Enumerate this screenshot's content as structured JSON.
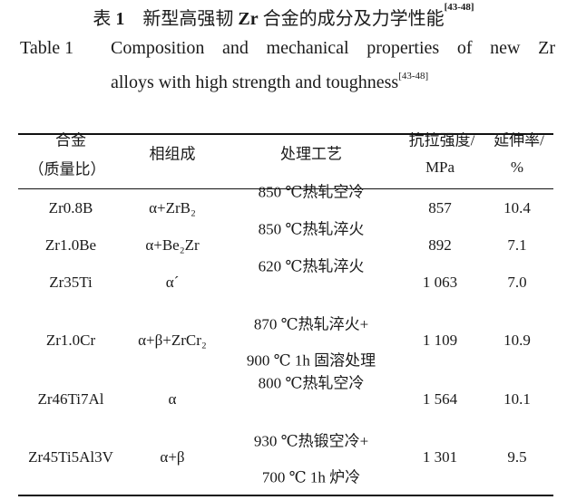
{
  "caption": {
    "zh_prefix": "表",
    "zh_number": "1",
    "zh_title_a": "新型高强韧",
    "zh_title_bold": "Zr",
    "zh_title_b": "合金的成分及力学性能",
    "zh_ref": "[43-48]",
    "en_label": "Table 1",
    "en_line1": "Composition and mechanical properties of new Zr",
    "en_line2": "alloys with high strength and toughness",
    "en_ref": "[43-48]"
  },
  "table": {
    "headers": {
      "alloy_1": "合金",
      "alloy_2": "（质量比）",
      "phase": "相组成",
      "process": "处理工艺",
      "strength_1": "抗拉强度/",
      "strength_2": "MPa",
      "elong_1": "延伸率/",
      "elong_2": "%"
    },
    "rows": [
      {
        "alloy": "Zr0.8B",
        "phase": "α+ZrB₂",
        "process": [
          "850 ℃热轧空冷"
        ],
        "strength": "857",
        "elongation": "10.4"
      },
      {
        "alloy": "Zr1.0Be",
        "phase": "α+Be₂Zr",
        "process": [
          "850 ℃热轧淬火"
        ],
        "strength": "892",
        "elongation": "7.1"
      },
      {
        "alloy": "Zr35Ti",
        "phase": "α´",
        "process": [
          "620 ℃热轧淬火"
        ],
        "strength": "1 063",
        "elongation": "7.0"
      },
      {
        "alloy": "Zr1.0Cr",
        "phase": "α+β+ZrCr₂",
        "process": [
          "870 ℃热轧淬火+",
          "900 ℃ 1h 固溶处理"
        ],
        "strength": "1 109",
        "elongation": "10.9"
      },
      {
        "alloy": "Zr46Ti7Al",
        "phase": "α",
        "process": [
          "800 ℃热轧空冷"
        ],
        "strength": "1 564",
        "elongation": "10.1"
      },
      {
        "alloy": "Zr45Ti5Al3V",
        "phase": "α+β",
        "process": [
          "930 ℃热锻空冷+",
          "700 ℃ 1h 炉冷"
        ],
        "strength": "1 301",
        "elongation": "9.5"
      }
    ]
  }
}
